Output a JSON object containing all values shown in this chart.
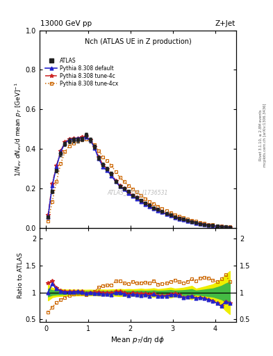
{
  "title_top": "13000 GeV pp",
  "title_right": "Z+Jet",
  "plot_title": "Nch (ATLAS UE in Z production)",
  "watermark": "ATLAS_2019_I1736531",
  "rivet_label": "Rivet 3.1.10, ≥ 2.8M events",
  "mcplots_label": "mcplots.cern.ch [arXiv:1306.3436]",
  "xlabel": "Mean $p_T$/d$\\eta$ d$\\phi$",
  "ylabel_main": "$1/N_{ev}$ $dN_{ev}$/d mean $p_T$ [GeV]$^{-1}$",
  "ylabel_ratio": "Ratio to ATLAS",
  "xlim": [
    -0.15,
    4.5
  ],
  "ylim_main": [
    0.0,
    1.0
  ],
  "ylim_ratio": [
    0.45,
    2.2
  ],
  "data_x": [
    0.05,
    0.15,
    0.25,
    0.35,
    0.45,
    0.55,
    0.65,
    0.75,
    0.85,
    0.95,
    1.05,
    1.15,
    1.25,
    1.35,
    1.45,
    1.55,
    1.65,
    1.75,
    1.85,
    1.95,
    2.05,
    2.15,
    2.25,
    2.35,
    2.45,
    2.55,
    2.65,
    2.75,
    2.85,
    2.95,
    3.05,
    3.15,
    3.25,
    3.35,
    3.45,
    3.55,
    3.65,
    3.75,
    3.85,
    3.95,
    4.05,
    4.15,
    4.25,
    4.35
  ],
  "data_y_atlas": [
    0.055,
    0.185,
    0.29,
    0.375,
    0.425,
    0.44,
    0.445,
    0.445,
    0.45,
    0.47,
    0.445,
    0.41,
    0.355,
    0.32,
    0.3,
    0.275,
    0.235,
    0.21,
    0.2,
    0.185,
    0.165,
    0.155,
    0.14,
    0.125,
    0.115,
    0.1,
    0.095,
    0.085,
    0.075,
    0.065,
    0.055,
    0.05,
    0.045,
    0.038,
    0.032,
    0.028,
    0.022,
    0.018,
    0.015,
    0.013,
    0.01,
    0.008,
    0.006,
    0.005
  ],
  "data_y_atlas_err": [
    0.004,
    0.008,
    0.01,
    0.012,
    0.012,
    0.012,
    0.012,
    0.012,
    0.012,
    0.012,
    0.012,
    0.01,
    0.01,
    0.009,
    0.008,
    0.008,
    0.007,
    0.007,
    0.006,
    0.006,
    0.005,
    0.005,
    0.005,
    0.004,
    0.004,
    0.004,
    0.003,
    0.003,
    0.003,
    0.003,
    0.002,
    0.002,
    0.002,
    0.002,
    0.002,
    0.001,
    0.001,
    0.001,
    0.001,
    0.001,
    0.001,
    0.001,
    0.001,
    0.001
  ],
  "data_y_default": [
    0.055,
    0.215,
    0.31,
    0.385,
    0.43,
    0.445,
    0.45,
    0.455,
    0.455,
    0.46,
    0.445,
    0.405,
    0.35,
    0.31,
    0.29,
    0.265,
    0.235,
    0.21,
    0.195,
    0.175,
    0.16,
    0.148,
    0.133,
    0.12,
    0.108,
    0.097,
    0.088,
    0.079,
    0.07,
    0.062,
    0.053,
    0.047,
    0.041,
    0.035,
    0.03,
    0.025,
    0.02,
    0.016,
    0.013,
    0.011,
    0.008,
    0.006,
    0.005,
    0.004
  ],
  "data_y_tune4c": [
    0.065,
    0.225,
    0.315,
    0.39,
    0.435,
    0.45,
    0.455,
    0.455,
    0.46,
    0.465,
    0.445,
    0.41,
    0.36,
    0.32,
    0.3,
    0.275,
    0.24,
    0.215,
    0.2,
    0.18,
    0.165,
    0.153,
    0.137,
    0.123,
    0.111,
    0.099,
    0.09,
    0.08,
    0.071,
    0.063,
    0.054,
    0.048,
    0.041,
    0.035,
    0.03,
    0.025,
    0.02,
    0.016,
    0.013,
    0.011,
    0.008,
    0.006,
    0.005,
    0.004
  ],
  "data_y_tune4cx": [
    0.035,
    0.135,
    0.235,
    0.325,
    0.385,
    0.415,
    0.43,
    0.44,
    0.445,
    0.45,
    0.445,
    0.42,
    0.39,
    0.36,
    0.34,
    0.315,
    0.285,
    0.255,
    0.235,
    0.215,
    0.198,
    0.182,
    0.165,
    0.149,
    0.135,
    0.122,
    0.11,
    0.099,
    0.088,
    0.078,
    0.068,
    0.06,
    0.053,
    0.046,
    0.04,
    0.034,
    0.028,
    0.023,
    0.019,
    0.016,
    0.012,
    0.01,
    0.008,
    0.006
  ],
  "color_atlas": "#222222",
  "color_default": "#2222cc",
  "color_tune4c": "#cc2222",
  "color_tune4cx": "#cc6600",
  "color_band_yellow": "#eeee00",
  "color_band_green": "#44bb44",
  "background": "#ffffff"
}
